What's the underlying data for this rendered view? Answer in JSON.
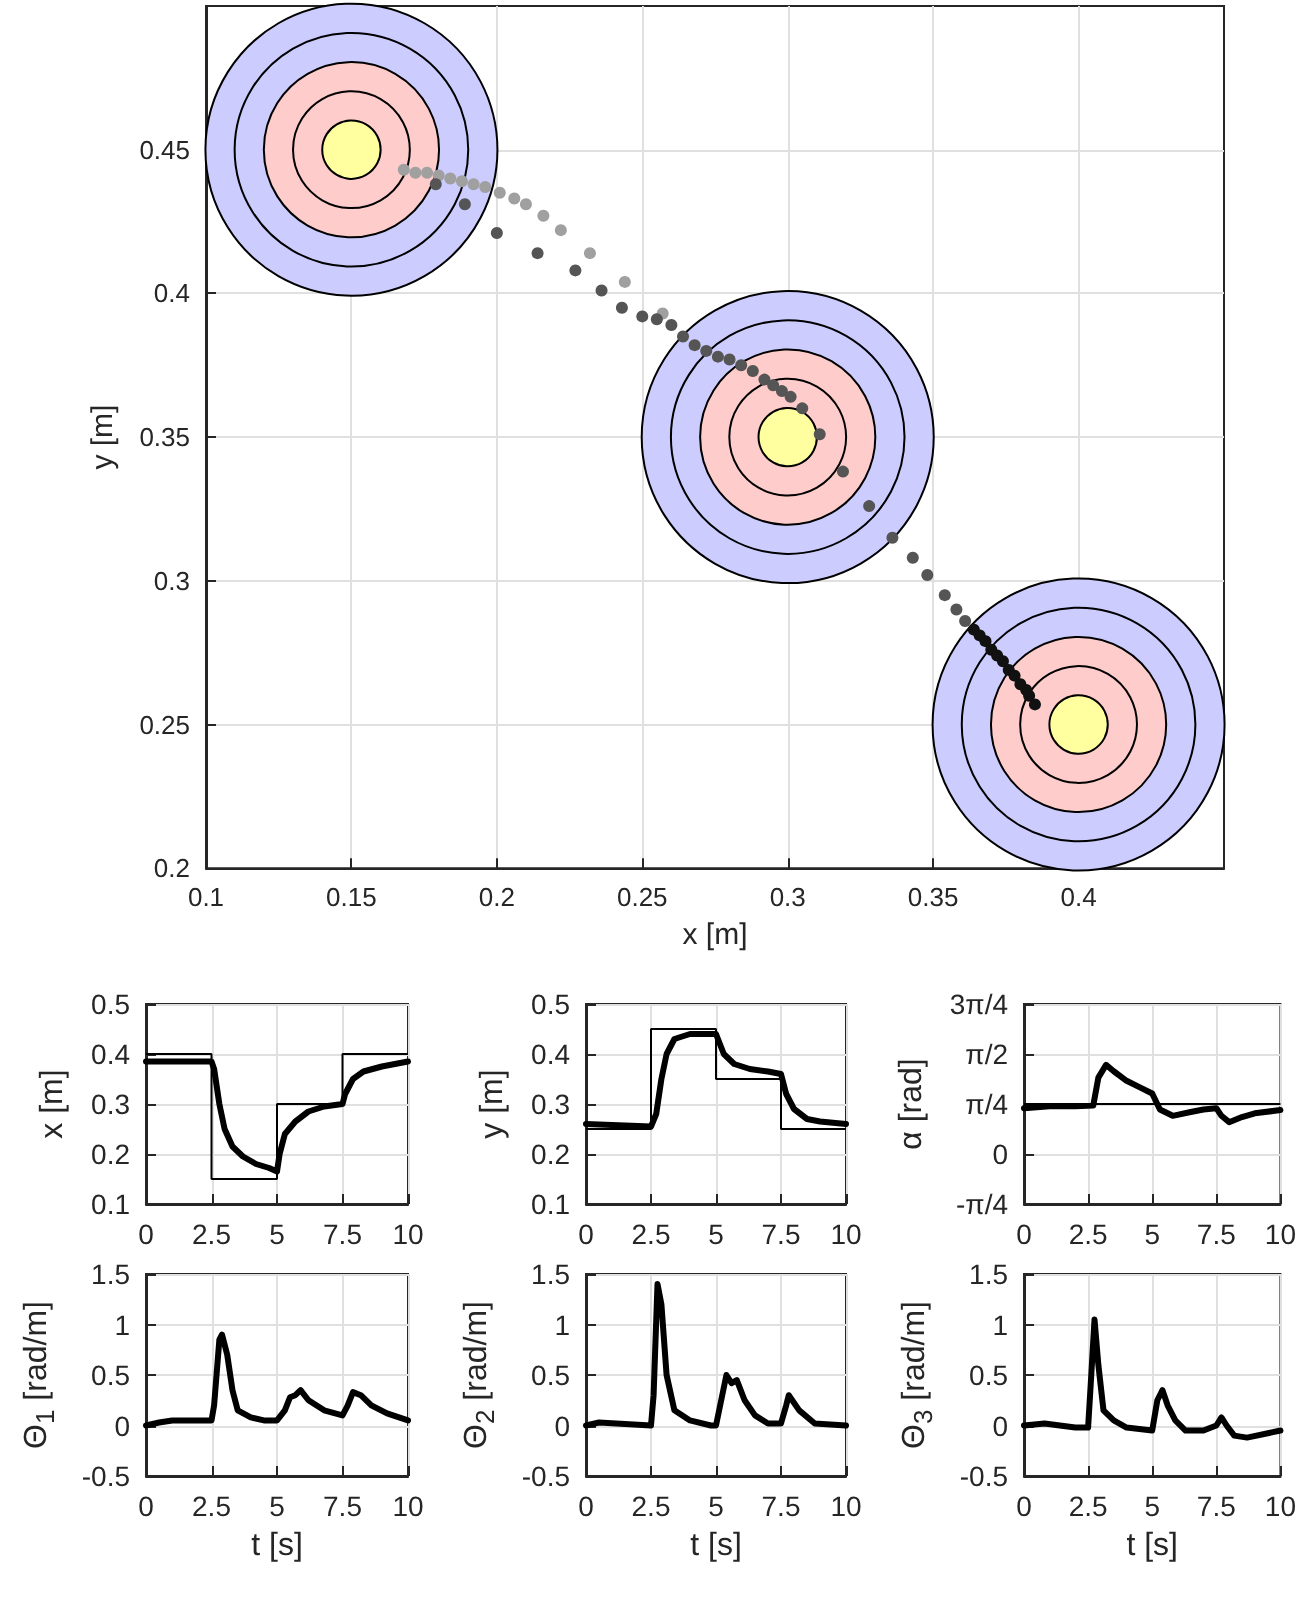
{
  "chart_data": [
    {
      "type": "scatter",
      "xlabel": "x [m]",
      "ylabel": "y [m]",
      "xlim": [
        0.1,
        0.45
      ],
      "ylim": [
        0.2,
        0.5
      ],
      "xticks": [
        0.1,
        0.15,
        0.2,
        0.25,
        0.3,
        0.35,
        0.4
      ],
      "yticks": [
        0.2,
        0.25,
        0.3,
        0.35,
        0.4,
        0.45
      ],
      "grid": true,
      "marker": "circle",
      "series": [
        {
          "type": "bubble",
          "color": "#ffffa0",
          "x": [
            0.15,
            0.3,
            0.4
          ],
          "values": [
            0.45,
            0.35,
            0.25
          ],
          "sizes": [
            1,
            1,
            1
          ]
        },
        {
          "color": "#a0a0a0",
          "x": [
            0.168,
            0.172,
            0.176,
            0.18,
            0.184,
            0.188,
            0.192,
            0.196,
            0.201,
            0.206,
            0.21,
            0.216,
            0.222,
            0.232,
            0.244,
            0.257
          ],
          "values": [
            0.443,
            0.442,
            0.442,
            0.441,
            0.44,
            0.439,
            0.438,
            0.437,
            0.435,
            0.433,
            0.431,
            0.427,
            0.422,
            0.414,
            0.404,
            0.393
          ]
        },
        {
          "color": "#555555",
          "x": [
            0.179,
            0.189,
            0.2,
            0.214,
            0.227,
            0.236,
            0.243,
            0.25,
            0.255,
            0.26,
            0.264,
            0.268,
            0.272,
            0.276,
            0.28,
            0.284,
            0.288,
            0.292,
            0.295,
            0.298,
            0.301,
            0.305,
            0.311,
            0.319,
            0.328,
            0.336,
            0.343,
            0.348,
            0.354,
            0.358,
            0.361
          ],
          "values": [
            0.438,
            0.431,
            0.421,
            0.414,
            0.408,
            0.401,
            0.395,
            0.392,
            0.391,
            0.389,
            0.385,
            0.382,
            0.38,
            0.378,
            0.377,
            0.375,
            0.373,
            0.37,
            0.368,
            0.366,
            0.364,
            0.36,
            0.351,
            0.338,
            0.326,
            0.315,
            0.308,
            0.302,
            0.295,
            0.29,
            0.286
          ]
        },
        {
          "color": "#111111",
          "x": [
            0.364,
            0.366,
            0.368,
            0.37,
            0.372,
            0.374,
            0.376,
            0.378,
            0.38,
            0.382,
            0.383,
            0.385
          ],
          "values": [
            0.283,
            0.281,
            0.279,
            0.276,
            0.274,
            0.272,
            0.269,
            0.267,
            0.264,
            0.262,
            0.26,
            0.257
          ]
        }
      ]
    },
    {
      "type": "line",
      "ylabel": "x [m]",
      "xlim": [
        0,
        10
      ],
      "ylim": [
        0.1,
        0.5
      ],
      "xticks": [
        0,
        2.5,
        5,
        7.5,
        10
      ],
      "yticks": [
        0.1,
        0.2,
        0.3,
        0.4,
        0.5
      ],
      "grid": true,
      "series": [
        {
          "type": "step",
          "color": "#000000",
          "x": [
            0,
            2.5,
            5,
            7.5,
            10
          ],
          "values": [
            0.4,
            0.15,
            0.3,
            0.4,
            0.4
          ]
        },
        {
          "color": "#000000",
          "x": [
            0,
            2.5,
            2.6,
            2.8,
            3,
            3.3,
            3.7,
            4.2,
            4.7,
            5,
            5.1,
            5.3,
            5.7,
            6.2,
            6.8,
            7.5,
            7.6,
            7.9,
            8.3,
            9,
            10
          ],
          "values": [
            0.385,
            0.385,
            0.37,
            0.3,
            0.25,
            0.215,
            0.195,
            0.18,
            0.172,
            0.165,
            0.2,
            0.24,
            0.265,
            0.285,
            0.295,
            0.3,
            0.32,
            0.35,
            0.365,
            0.375,
            0.385
          ]
        }
      ]
    },
    {
      "type": "line",
      "ylabel": "y [m]",
      "xlim": [
        0,
        10
      ],
      "ylim": [
        0.1,
        0.5
      ],
      "xticks": [
        0,
        2.5,
        5,
        7.5,
        10
      ],
      "yticks": [
        0.1,
        0.2,
        0.3,
        0.4,
        0.5
      ],
      "grid": true,
      "series": [
        {
          "type": "step",
          "color": "#000000",
          "x": [
            0,
            2.5,
            5,
            7.5,
            10
          ],
          "values": [
            0.25,
            0.45,
            0.35,
            0.25,
            0.25
          ]
        },
        {
          "color": "#000000",
          "x": [
            0,
            2.5,
            2.7,
            2.9,
            3.1,
            3.4,
            4,
            5,
            5.3,
            5.7,
            6.3,
            7,
            7.5,
            7.7,
            8,
            8.5,
            9,
            10
          ],
          "values": [
            0.26,
            0.255,
            0.28,
            0.35,
            0.4,
            0.43,
            0.44,
            0.44,
            0.4,
            0.38,
            0.37,
            0.365,
            0.36,
            0.32,
            0.29,
            0.27,
            0.265,
            0.26
          ]
        }
      ]
    },
    {
      "type": "line",
      "ylabel": "α [rad]",
      "xlim": [
        0,
        10
      ],
      "ylim": [
        -0.785,
        2.356
      ],
      "xticks": [
        0,
        2.5,
        5,
        7.5,
        10
      ],
      "yticks": [
        {
          "value": -0.785,
          "label": "-π/4"
        },
        0,
        {
          "value": 0.785,
          "label": "π/4"
        },
        {
          "value": 1.571,
          "label": "π/2"
        },
        {
          "value": 2.356,
          "label": "3π/4"
        }
      ],
      "grid": true,
      "series": [
        {
          "type": "step",
          "color": "#000000",
          "x": [
            0,
            10
          ],
          "values": [
            0.785,
            0.785
          ]
        },
        {
          "color": "#000000",
          "x": [
            0,
            1,
            2,
            2.7,
            2.9,
            3.2,
            3.5,
            4,
            4.5,
            5,
            5.3,
            5.8,
            6.5,
            7,
            7.5,
            7.7,
            8,
            8.5,
            9,
            10
          ],
          "values": [
            0.72,
            0.75,
            0.75,
            0.76,
            1.2,
            1.4,
            1.3,
            1.15,
            1.05,
            0.95,
            0.7,
            0.6,
            0.66,
            0.7,
            0.72,
            0.6,
            0.5,
            0.58,
            0.64,
            0.69
          ]
        }
      ]
    },
    {
      "type": "line",
      "xlabel": "t [s]",
      "ylabel": "Θ$_{1}$ [rad/m]",
      "xlim": [
        0,
        10
      ],
      "ylim": [
        -0.5,
        1.5
      ],
      "xticks": [
        0,
        2.5,
        5,
        7.5,
        10
      ],
      "yticks": [
        -0.5,
        0,
        0.5,
        1,
        1.5
      ],
      "grid": true,
      "series": [
        {
          "color": "#000000",
          "x": [
            0,
            0.5,
            1,
            2.5,
            2.6,
            2.8,
            2.9,
            3.1,
            3.3,
            3.5,
            4,
            4.5,
            5,
            5.3,
            5.5,
            5.7,
            5.9,
            6.2,
            6.8,
            7.5,
            7.7,
            7.9,
            8.2,
            8.6,
            9.2,
            10
          ],
          "values": [
            0,
            0.03,
            0.05,
            0.05,
            0.2,
            0.85,
            0.9,
            0.7,
            0.35,
            0.15,
            0.08,
            0.05,
            0.05,
            0.15,
            0.28,
            0.3,
            0.35,
            0.25,
            0.15,
            0.1,
            0.2,
            0.33,
            0.3,
            0.2,
            0.12,
            0.05
          ]
        }
      ]
    },
    {
      "type": "line",
      "xlabel": "t [s]",
      "ylabel": "Θ$_{2}$ [rad/m]",
      "xlim": [
        0,
        10
      ],
      "ylim": [
        -0.5,
        1.5
      ],
      "xticks": [
        0,
        2.5,
        5,
        7.5,
        10
      ],
      "yticks": [
        -0.5,
        0,
        0.5,
        1,
        1.5
      ],
      "grid": true,
      "series": [
        {
          "color": "#000000",
          "x": [
            0,
            0.5,
            2.5,
            2.6,
            2.75,
            2.9,
            3.1,
            3.4,
            4,
            4.8,
            5,
            5.2,
            5.4,
            5.6,
            5.8,
            6.1,
            6.5,
            7,
            7.5,
            7.7,
            7.8,
            8.2,
            8.8,
            10
          ],
          "values": [
            0,
            0.03,
            0,
            0.3,
            1.4,
            1.2,
            0.5,
            0.15,
            0.05,
            0,
            0,
            0.25,
            0.5,
            0.42,
            0.45,
            0.25,
            0.1,
            0.02,
            0.02,
            0.2,
            0.3,
            0.15,
            0.02,
            0
          ]
        }
      ]
    },
    {
      "type": "line",
      "xlabel": "t [s]",
      "ylabel": "Θ$_{3}$ [rad/m]",
      "xlim": [
        0,
        10
      ],
      "ylim": [
        -0.5,
        1.5
      ],
      "xticks": [
        0,
        2.5,
        5,
        7.5,
        10
      ],
      "yticks": [
        -0.5,
        0,
        0.5,
        1,
        1.5
      ],
      "grid": true,
      "series": [
        {
          "color": "#000000",
          "x": [
            0,
            0.8,
            2,
            2.5,
            2.6,
            2.75,
            2.9,
            3.1,
            3.5,
            4,
            5,
            5.2,
            5.4,
            5.6,
            5.9,
            6.3,
            7,
            7.5,
            7.7,
            7.9,
            8.2,
            8.7,
            10
          ],
          "values": [
            0,
            0.02,
            -0.02,
            -0.02,
            0.4,
            1.05,
            0.6,
            0.15,
            0.05,
            -0.02,
            -0.05,
            0.25,
            0.35,
            0.2,
            0.05,
            -0.05,
            -0.05,
            0,
            0.08,
            0,
            -0.1,
            -0.12,
            -0.05
          ]
        }
      ]
    }
  ]
}
